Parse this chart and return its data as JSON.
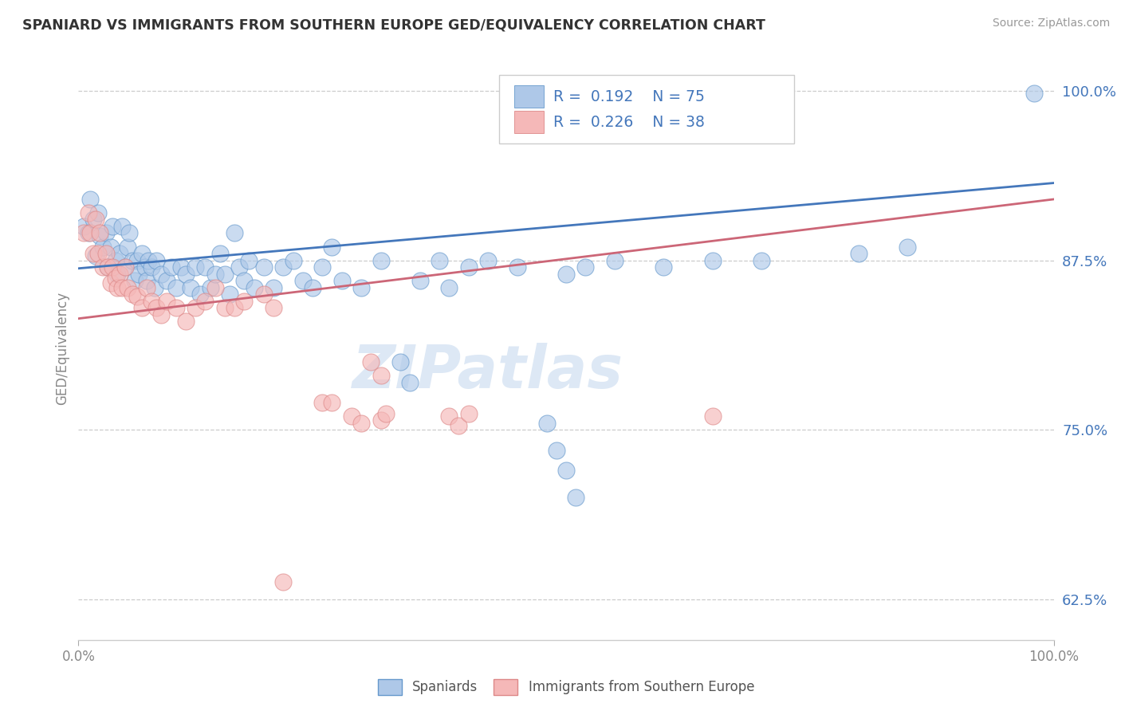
{
  "title": "SPANIARD VS IMMIGRANTS FROM SOUTHERN EUROPE GED/EQUIVALENCY CORRELATION CHART",
  "source": "Source: ZipAtlas.com",
  "ylabel": "GED/Equivalency",
  "xlim": [
    0.0,
    1.0
  ],
  "ylim": [
    0.595,
    1.025
  ],
  "yticks": [
    0.625,
    0.75,
    0.875,
    1.0
  ],
  "ytick_labels": [
    "62.5%",
    "75.0%",
    "87.5%",
    "100.0%"
  ],
  "legend_r_blue": "0.192",
  "legend_n_blue": "75",
  "legend_r_pink": "0.226",
  "legend_n_pink": "38",
  "legend_label_blue": "Spaniards",
  "legend_label_pink": "Immigrants from Southern Europe",
  "blue_color": "#aec8e8",
  "blue_edge": "#6699cc",
  "pink_color": "#f5b8b8",
  "pink_edge": "#dd8888",
  "line_blue_color": "#4477bb",
  "line_pink_color": "#cc6677",
  "blue_line_start_y": 0.869,
  "blue_line_end_y": 0.932,
  "pink_line_start_y": 0.832,
  "pink_line_end_y": 0.92,
  "watermark_text": "ZIPatlas",
  "watermark_color": "#dde8f5",
  "blue_dots": [
    [
      0.005,
      0.9
    ],
    [
      0.01,
      0.895
    ],
    [
      0.012,
      0.92
    ],
    [
      0.015,
      0.905
    ],
    [
      0.018,
      0.878
    ],
    [
      0.02,
      0.91
    ],
    [
      0.022,
      0.893
    ],
    [
      0.025,
      0.885
    ],
    [
      0.028,
      0.895
    ],
    [
      0.03,
      0.87
    ],
    [
      0.033,
      0.885
    ],
    [
      0.035,
      0.9
    ],
    [
      0.038,
      0.875
    ],
    [
      0.04,
      0.865
    ],
    [
      0.042,
      0.88
    ],
    [
      0.045,
      0.9
    ],
    [
      0.048,
      0.87
    ],
    [
      0.05,
      0.885
    ],
    [
      0.052,
      0.895
    ],
    [
      0.055,
      0.875
    ],
    [
      0.058,
      0.86
    ],
    [
      0.06,
      0.875
    ],
    [
      0.062,
      0.865
    ],
    [
      0.065,
      0.88
    ],
    [
      0.068,
      0.87
    ],
    [
      0.07,
      0.86
    ],
    [
      0.072,
      0.875
    ],
    [
      0.075,
      0.87
    ],
    [
      0.078,
      0.855
    ],
    [
      0.08,
      0.875
    ],
    [
      0.085,
      0.865
    ],
    [
      0.09,
      0.86
    ],
    [
      0.095,
      0.87
    ],
    [
      0.1,
      0.855
    ],
    [
      0.105,
      0.87
    ],
    [
      0.11,
      0.865
    ],
    [
      0.115,
      0.855
    ],
    [
      0.12,
      0.87
    ],
    [
      0.125,
      0.85
    ],
    [
      0.13,
      0.87
    ],
    [
      0.135,
      0.855
    ],
    [
      0.14,
      0.865
    ],
    [
      0.145,
      0.88
    ],
    [
      0.15,
      0.865
    ],
    [
      0.155,
      0.85
    ],
    [
      0.16,
      0.895
    ],
    [
      0.165,
      0.87
    ],
    [
      0.17,
      0.86
    ],
    [
      0.175,
      0.875
    ],
    [
      0.18,
      0.855
    ],
    [
      0.19,
      0.87
    ],
    [
      0.2,
      0.855
    ],
    [
      0.21,
      0.87
    ],
    [
      0.22,
      0.875
    ],
    [
      0.23,
      0.86
    ],
    [
      0.24,
      0.855
    ],
    [
      0.25,
      0.87
    ],
    [
      0.26,
      0.885
    ],
    [
      0.27,
      0.86
    ],
    [
      0.29,
      0.855
    ],
    [
      0.31,
      0.875
    ],
    [
      0.35,
      0.86
    ],
    [
      0.37,
      0.875
    ],
    [
      0.38,
      0.855
    ],
    [
      0.4,
      0.87
    ],
    [
      0.42,
      0.875
    ],
    [
      0.45,
      0.87
    ],
    [
      0.5,
      0.865
    ],
    [
      0.52,
      0.87
    ],
    [
      0.55,
      0.875
    ],
    [
      0.6,
      0.87
    ],
    [
      0.65,
      0.875
    ],
    [
      0.7,
      0.875
    ],
    [
      0.8,
      0.88
    ],
    [
      0.85,
      0.885
    ],
    [
      0.98,
      0.998
    ],
    [
      0.33,
      0.8
    ],
    [
      0.34,
      0.785
    ],
    [
      0.48,
      0.755
    ],
    [
      0.49,
      0.735
    ],
    [
      0.5,
      0.72
    ],
    [
      0.51,
      0.7
    ]
  ],
  "pink_dots": [
    [
      0.005,
      0.895
    ],
    [
      0.01,
      0.91
    ],
    [
      0.012,
      0.895
    ],
    [
      0.015,
      0.88
    ],
    [
      0.018,
      0.905
    ],
    [
      0.02,
      0.88
    ],
    [
      0.022,
      0.895
    ],
    [
      0.025,
      0.87
    ],
    [
      0.028,
      0.88
    ],
    [
      0.03,
      0.87
    ],
    [
      0.033,
      0.858
    ],
    [
      0.035,
      0.87
    ],
    [
      0.038,
      0.862
    ],
    [
      0.04,
      0.855
    ],
    [
      0.042,
      0.865
    ],
    [
      0.045,
      0.855
    ],
    [
      0.048,
      0.87
    ],
    [
      0.05,
      0.855
    ],
    [
      0.055,
      0.85
    ],
    [
      0.06,
      0.848
    ],
    [
      0.065,
      0.84
    ],
    [
      0.07,
      0.855
    ],
    [
      0.075,
      0.845
    ],
    [
      0.08,
      0.84
    ],
    [
      0.085,
      0.835
    ],
    [
      0.09,
      0.845
    ],
    [
      0.1,
      0.84
    ],
    [
      0.11,
      0.83
    ],
    [
      0.12,
      0.84
    ],
    [
      0.13,
      0.845
    ],
    [
      0.14,
      0.855
    ],
    [
      0.15,
      0.84
    ],
    [
      0.16,
      0.84
    ],
    [
      0.17,
      0.845
    ],
    [
      0.19,
      0.85
    ],
    [
      0.2,
      0.84
    ],
    [
      0.25,
      0.77
    ],
    [
      0.26,
      0.77
    ],
    [
      0.28,
      0.76
    ],
    [
      0.29,
      0.755
    ],
    [
      0.31,
      0.757
    ],
    [
      0.315,
      0.762
    ],
    [
      0.38,
      0.76
    ],
    [
      0.39,
      0.753
    ],
    [
      0.4,
      0.762
    ],
    [
      0.65,
      0.76
    ],
    [
      0.21,
      0.638
    ],
    [
      0.3,
      0.8
    ],
    [
      0.31,
      0.79
    ]
  ]
}
